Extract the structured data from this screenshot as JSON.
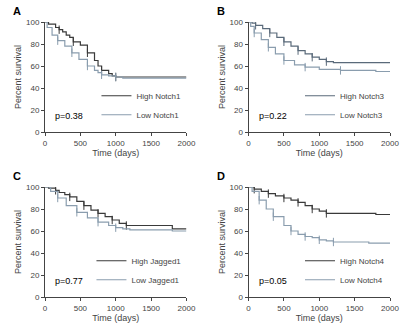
{
  "chart_data": [
    {
      "type": "step",
      "title": "A",
      "annotations": [
        "p=0.38"
      ],
      "xlabel": "Time (days)",
      "ylabel": "Percent survival",
      "xlim": [
        0,
        2000
      ],
      "ylim": [
        0,
        100
      ],
      "xticks": [
        0,
        500,
        1000,
        1500,
        2000
      ],
      "yticks": [
        0,
        20,
        40,
        60,
        80,
        100
      ],
      "grid": false,
      "legend": "lower right",
      "series": [
        {
          "name": "High Notch1",
          "color": "#3a3a3a",
          "x": [
            0,
            50,
            150,
            200,
            250,
            300,
            350,
            400,
            500,
            600,
            700,
            750,
            800,
            900,
            950,
            1000,
            1600,
            2000
          ],
          "values": [
            100,
            98,
            95,
            93,
            91,
            88,
            86,
            82,
            79,
            72,
            65,
            60,
            56,
            53,
            51,
            50,
            50,
            50
          ],
          "censor_x": [
            200,
            400,
            600,
            800,
            1000
          ],
          "censor_y": [
            93,
            82,
            72,
            56,
            50
          ]
        },
        {
          "name": "Low Notch1",
          "color": "#8a9dae",
          "x": [
            0,
            30,
            100,
            180,
            280,
            380,
            480,
            600,
            700,
            750,
            800,
            900,
            1000,
            1100,
            1600,
            2000
          ],
          "values": [
            100,
            95,
            88,
            83,
            78,
            72,
            66,
            60,
            56,
            54,
            52,
            51,
            50,
            49,
            49,
            49
          ],
          "censor_x": [
            180,
            380,
            600,
            800,
            1000
          ],
          "censor_y": [
            83,
            72,
            60,
            52,
            50
          ]
        }
      ]
    },
    {
      "type": "step",
      "title": "B",
      "annotations": [
        "p=0.22"
      ],
      "xlabel": "Time (days)",
      "ylabel": "Percent survival",
      "xlim": [
        0,
        2000
      ],
      "ylim": [
        0,
        100
      ],
      "xticks": [
        0,
        500,
        1000,
        1500,
        2000
      ],
      "yticks": [
        0,
        20,
        40,
        60,
        80,
        100
      ],
      "grid": false,
      "legend": "lower right",
      "series": [
        {
          "name": "High Notch3",
          "color": "#5a6a7a",
          "x": [
            0,
            50,
            100,
            200,
            300,
            400,
            500,
            600,
            700,
            800,
            900,
            1000,
            1100,
            1200,
            1800,
            2000
          ],
          "values": [
            100,
            99,
            97,
            94,
            90,
            86,
            82,
            78,
            74,
            71,
            68,
            66,
            64,
            63,
            63,
            63
          ],
          "censor_x": [
            100,
            300,
            500,
            700,
            900,
            1100
          ],
          "censor_y": [
            97,
            90,
            82,
            74,
            68,
            64
          ]
        },
        {
          "name": "Low Notch3",
          "color": "#8a9dae",
          "x": [
            0,
            30,
            80,
            180,
            280,
            380,
            500,
            650,
            800,
            1000,
            1300,
            1800,
            2000
          ],
          "values": [
            100,
            96,
            90,
            84,
            77,
            71,
            65,
            61,
            59,
            57,
            56,
            55,
            55
          ],
          "censor_x": [
            80,
            280,
            500,
            800,
            1300
          ],
          "censor_y": [
            90,
            77,
            65,
            59,
            56
          ]
        }
      ]
    },
    {
      "type": "step",
      "title": "C",
      "annotations": [
        "p=0.77"
      ],
      "xlabel": "Time (days)",
      "ylabel": "Percent survival",
      "xlim": [
        0,
        2000
      ],
      "ylim": [
        0,
        100
      ],
      "xticks": [
        0,
        500,
        1000,
        1500,
        2000
      ],
      "yticks": [
        0,
        20,
        40,
        60,
        80,
        100
      ],
      "grid": false,
      "legend": "lower right",
      "series": [
        {
          "name": "High Jagged1",
          "color": "#3a3a3a",
          "x": [
            0,
            50,
            150,
            200,
            280,
            350,
            450,
            550,
            650,
            750,
            850,
            950,
            1050,
            1150,
            1800,
            2000
          ],
          "values": [
            100,
            99,
            97,
            95,
            93,
            91,
            87,
            83,
            79,
            76,
            73,
            70,
            67,
            65,
            62,
            62
          ],
          "censor_x": [
            150,
            350,
            550,
            750,
            950,
            1150
          ],
          "censor_y": [
            97,
            91,
            83,
            76,
            70,
            65
          ]
        },
        {
          "name": "Low Jagged1",
          "color": "#8a9dae",
          "x": [
            0,
            80,
            180,
            300,
            450,
            600,
            750,
            900,
            1000,
            1100,
            1200,
            1800,
            2000
          ],
          "values": [
            100,
            96,
            90,
            83,
            77,
            72,
            68,
            65,
            63,
            62,
            61,
            60,
            60
          ],
          "censor_x": [
            180,
            450,
            750,
            1000
          ],
          "censor_y": [
            90,
            77,
            68,
            63
          ]
        }
      ]
    },
    {
      "type": "step",
      "title": "D",
      "annotations": [
        "p=0.05"
      ],
      "xlabel": "Time (days)",
      "ylabel": "Percent survival",
      "xlim": [
        0,
        2000
      ],
      "ylim": [
        0,
        100
      ],
      "xticks": [
        0,
        500,
        1000,
        1500,
        2000
      ],
      "yticks": [
        0,
        20,
        40,
        60,
        80,
        100
      ],
      "grid": false,
      "legend": "lower right",
      "series": [
        {
          "name": "High Notch4",
          "color": "#3a3a3a",
          "x": [
            0,
            30,
            80,
            180,
            280,
            380,
            500,
            600,
            700,
            800,
            900,
            1000,
            1100,
            1800,
            2000
          ],
          "values": [
            100,
            100,
            98,
            96,
            94,
            92,
            90,
            88,
            86,
            83,
            80,
            78,
            76,
            75,
            75
          ],
          "censor_x": [
            80,
            280,
            500,
            700,
            900,
            1100
          ],
          "censor_y": [
            98,
            94,
            90,
            86,
            80,
            76
          ]
        },
        {
          "name": "Low Notch4",
          "color": "#8a9dae",
          "x": [
            0,
            50,
            150,
            250,
            350,
            500,
            600,
            700,
            800,
            900,
            1000,
            1100,
            1200,
            1700,
            2000
          ],
          "values": [
            100,
            96,
            88,
            80,
            73,
            65,
            60,
            57,
            55,
            54,
            52,
            51,
            50,
            49,
            49
          ],
          "censor_x": [
            150,
            350,
            600,
            800,
            1000,
            1200
          ],
          "censor_y": [
            88,
            73,
            60,
            55,
            52,
            50
          ]
        }
      ]
    }
  ]
}
